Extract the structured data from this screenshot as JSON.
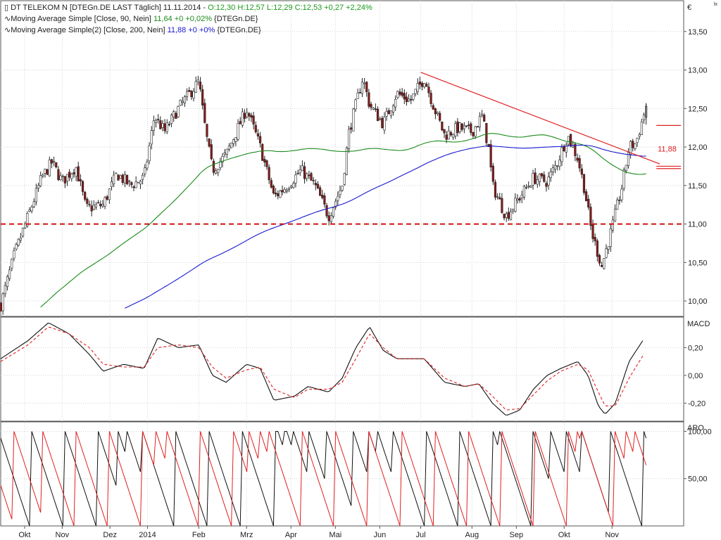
{
  "header": {
    "line1": {
      "prefix": "DT TELEKOM N [DTEGn.DE LAST Täglich] 11.11.2014 - ",
      "quote": "O:12,30 H:12,57 L:12,29 C:12,53 +0,27 +2,24%"
    },
    "line2": {
      "prefix": "Moving Average Simple [Close, 90, Nein] ",
      "value": "11,64 +0 +0,02%",
      "suffix": " {DTEGn.DE}"
    },
    "line3": {
      "prefix": "Moving Average Simple(2) [Close, 200, Nein] ",
      "value": "11,88 +0 +0%",
      "suffix": " {DTEGn.DE}"
    },
    "currency": "€",
    "corner": "lx"
  },
  "colors": {
    "quote": "#1a9a1a",
    "ma90": "#1a8a1a",
    "ma200": "#1a1ad0",
    "trend": "#e02020",
    "support": "#d01010",
    "candle_up": "#ffffff",
    "candle_down": "#8b1a1a",
    "macd": "#111111",
    "signal": "#e02020",
    "aroon_up": "#111111",
    "aroon_down": "#e02020"
  },
  "chart_data": [
    {
      "type": "candlestick",
      "ylim": [
        9.8,
        13.9
      ],
      "yticks": [
        "13,50",
        "13,00",
        "12,50",
        "12,00",
        "11,50",
        "11,00",
        "10,50",
        "10,00"
      ],
      "ytick_values": [
        13.5,
        13.0,
        12.5,
        12.0,
        11.5,
        11.0,
        10.5,
        10.0
      ],
      "support_level": 11.0,
      "ma200_label": "11,88",
      "trendline": [
        [
          0.615,
          12.97
        ],
        [
          0.965,
          11.78
        ]
      ],
      "resistance_marks": [
        12.28,
        11.75,
        11.72
      ],
      "price_path": [
        [
          0.0,
          9.95
        ],
        [
          0.02,
          10.6
        ],
        [
          0.04,
          11.1
        ],
        [
          0.06,
          11.6
        ],
        [
          0.075,
          11.8
        ],
        [
          0.09,
          11.55
        ],
        [
          0.11,
          11.75
        ],
        [
          0.125,
          11.2
        ],
        [
          0.15,
          11.25
        ],
        [
          0.17,
          11.65
        ],
        [
          0.19,
          11.5
        ],
        [
          0.21,
          11.6
        ],
        [
          0.225,
          12.4
        ],
        [
          0.24,
          12.2
        ],
        [
          0.26,
          12.5
        ],
        [
          0.29,
          12.85
        ],
        [
          0.3,
          12.2
        ],
        [
          0.31,
          11.7
        ],
        [
          0.33,
          11.9
        ],
        [
          0.36,
          12.5
        ],
        [
          0.38,
          12.0
        ],
        [
          0.4,
          11.35
        ],
        [
          0.42,
          11.5
        ],
        [
          0.44,
          11.7
        ],
        [
          0.46,
          11.5
        ],
        [
          0.48,
          11.1
        ],
        [
          0.5,
          11.5
        ],
        [
          0.51,
          12.2
        ],
        [
          0.53,
          12.9
        ],
        [
          0.54,
          12.55
        ],
        [
          0.56,
          12.3
        ],
        [
          0.58,
          12.7
        ],
        [
          0.6,
          12.6
        ],
        [
          0.62,
          12.9
        ],
        [
          0.635,
          12.5
        ],
        [
          0.65,
          12.15
        ],
        [
          0.67,
          12.25
        ],
        [
          0.69,
          12.2
        ],
        [
          0.705,
          12.4
        ],
        [
          0.715,
          11.95
        ],
        [
          0.72,
          11.5
        ],
        [
          0.74,
          11.1
        ],
        [
          0.76,
          11.35
        ],
        [
          0.78,
          11.6
        ],
        [
          0.8,
          11.55
        ],
        [
          0.815,
          11.8
        ],
        [
          0.83,
          12.15
        ],
        [
          0.845,
          11.85
        ],
        [
          0.855,
          11.45
        ],
        [
          0.865,
          10.9
        ],
        [
          0.88,
          10.45
        ],
        [
          0.895,
          10.95
        ],
        [
          0.91,
          11.5
        ],
        [
          0.92,
          12.0
        ],
        [
          0.93,
          12.05
        ],
        [
          0.945,
          12.53
        ]
      ]
    },
    {
      "type": "line",
      "name": "MACD",
      "ylim": [
        -0.33,
        0.42
      ],
      "yticks": [
        "0,20",
        "0,00",
        "-0,20"
      ],
      "ytick_values": [
        0.2,
        0.0,
        -0.2
      ],
      "macd": [
        [
          0.0,
          0.12
        ],
        [
          0.04,
          0.25
        ],
        [
          0.07,
          0.38
        ],
        [
          0.1,
          0.3
        ],
        [
          0.13,
          0.15
        ],
        [
          0.15,
          0.03
        ],
        [
          0.18,
          0.08
        ],
        [
          0.21,
          0.05
        ],
        [
          0.23,
          0.27
        ],
        [
          0.26,
          0.2
        ],
        [
          0.29,
          0.22
        ],
        [
          0.31,
          0.0
        ],
        [
          0.33,
          -0.05
        ],
        [
          0.36,
          0.08
        ],
        [
          0.38,
          0.05
        ],
        [
          0.4,
          -0.18
        ],
        [
          0.43,
          -0.15
        ],
        [
          0.45,
          -0.08
        ],
        [
          0.48,
          -0.12
        ],
        [
          0.5,
          -0.02
        ],
        [
          0.52,
          0.2
        ],
        [
          0.54,
          0.35
        ],
        [
          0.56,
          0.18
        ],
        [
          0.58,
          0.12
        ],
        [
          0.62,
          0.12
        ],
        [
          0.65,
          -0.05
        ],
        [
          0.68,
          -0.08
        ],
        [
          0.7,
          -0.06
        ],
        [
          0.72,
          -0.2
        ],
        [
          0.74,
          -0.29
        ],
        [
          0.76,
          -0.25
        ],
        [
          0.78,
          -0.1
        ],
        [
          0.8,
          0.0
        ],
        [
          0.82,
          0.05
        ],
        [
          0.845,
          0.1
        ],
        [
          0.86,
          0.0
        ],
        [
          0.875,
          -0.22
        ],
        [
          0.885,
          -0.28
        ],
        [
          0.9,
          -0.2
        ],
        [
          0.92,
          0.1
        ],
        [
          0.94,
          0.25
        ]
      ],
      "signal": [
        [
          0.0,
          0.1
        ],
        [
          0.04,
          0.22
        ],
        [
          0.07,
          0.35
        ],
        [
          0.1,
          0.3
        ],
        [
          0.13,
          0.2
        ],
        [
          0.15,
          0.08
        ],
        [
          0.18,
          0.06
        ],
        [
          0.21,
          0.06
        ],
        [
          0.23,
          0.2
        ],
        [
          0.26,
          0.22
        ],
        [
          0.29,
          0.2
        ],
        [
          0.31,
          0.06
        ],
        [
          0.33,
          -0.02
        ],
        [
          0.36,
          0.04
        ],
        [
          0.38,
          0.06
        ],
        [
          0.4,
          -0.1
        ],
        [
          0.43,
          -0.16
        ],
        [
          0.45,
          -0.1
        ],
        [
          0.48,
          -0.1
        ],
        [
          0.5,
          -0.05
        ],
        [
          0.52,
          0.12
        ],
        [
          0.54,
          0.3
        ],
        [
          0.56,
          0.2
        ],
        [
          0.58,
          0.12
        ],
        [
          0.62,
          0.12
        ],
        [
          0.65,
          -0.02
        ],
        [
          0.68,
          -0.08
        ],
        [
          0.7,
          -0.06
        ],
        [
          0.72,
          -0.15
        ],
        [
          0.74,
          -0.25
        ],
        [
          0.76,
          -0.24
        ],
        [
          0.78,
          -0.14
        ],
        [
          0.8,
          -0.04
        ],
        [
          0.82,
          0.03
        ],
        [
          0.845,
          0.08
        ],
        [
          0.86,
          0.04
        ],
        [
          0.875,
          -0.12
        ],
        [
          0.885,
          -0.22
        ],
        [
          0.9,
          -0.22
        ],
        [
          0.92,
          -0.02
        ],
        [
          0.94,
          0.14
        ]
      ]
    },
    {
      "type": "line",
      "name": "ARO",
      "ylim": [
        0,
        110
      ],
      "yticks": [
        "100,00",
        "50,00"
      ],
      "ytick_values": [
        100,
        50
      ]
    }
  ],
  "xaxis": {
    "labels": [
      "Okt",
      "Nov",
      "Dez",
      "2014",
      "Feb",
      "Mrz",
      "Apr",
      "Mai",
      "Jun",
      "Jul",
      "Aug",
      "Sep",
      "Okt",
      "Nov"
    ],
    "positions": [
      0.035,
      0.09,
      0.16,
      0.215,
      0.29,
      0.36,
      0.425,
      0.49,
      0.555,
      0.615,
      0.69,
      0.755,
      0.825,
      0.895
    ]
  },
  "panels": {
    "macd_label": "MACD",
    "aroon_label": "ARO"
  }
}
